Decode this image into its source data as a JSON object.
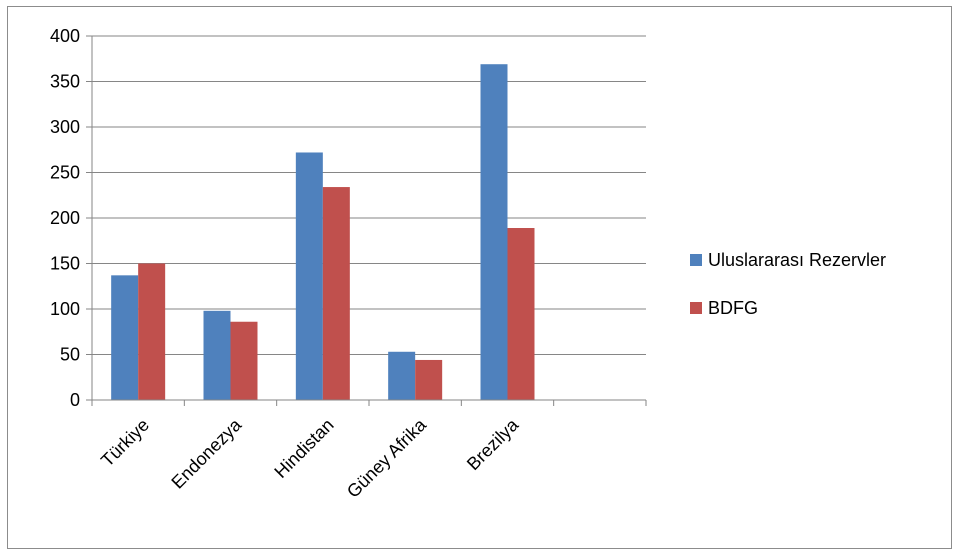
{
  "chart_data": {
    "type": "bar",
    "categories": [
      "Türkiye",
      "Endonezya",
      "Hindistan",
      "Güney Afrika",
      "Brezilya",
      ""
    ],
    "series": [
      {
        "name": "Uluslararası Rezervler",
        "color": "#4f81bd",
        "values": [
          137,
          98,
          272,
          53,
          369,
          null
        ]
      },
      {
        "name": "BDFG",
        "color": "#c0504d",
        "values": [
          150,
          86,
          234,
          44,
          189,
          null
        ]
      }
    ],
    "ylim": [
      0,
      400
    ],
    "yticks": [
      0,
      50,
      100,
      150,
      200,
      250,
      300,
      350,
      400
    ],
    "grid": true,
    "legend_position": "right",
    "title": "",
    "xlabel": "",
    "ylabel": ""
  }
}
